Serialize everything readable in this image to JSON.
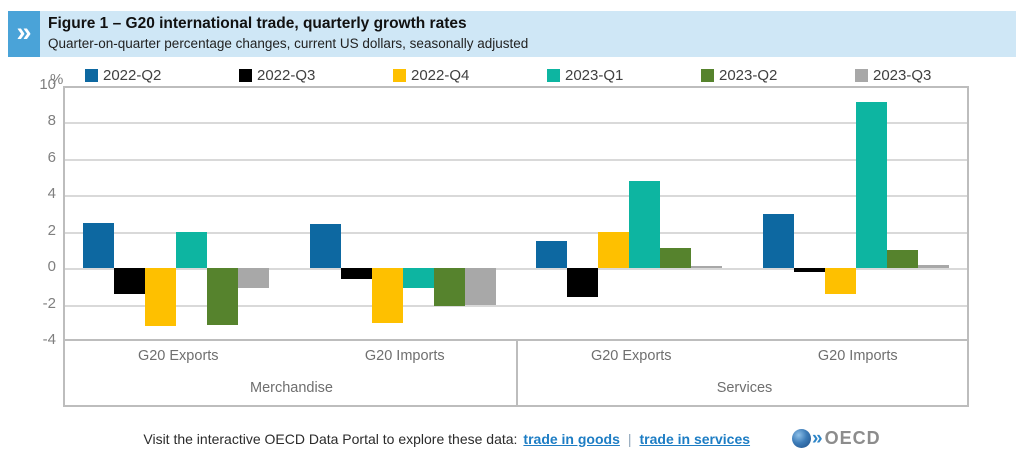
{
  "header": {
    "chevron_icon": "»",
    "title": "Figure 1 – G20 international trade, quarterly growth rates",
    "subtitle": "Quarter-on-quarter percentage changes, current US dollars, seasonally adjusted",
    "band_color": "#cfe7f6",
    "chevron_bg_color": "#4aa3d8"
  },
  "chart_data": {
    "type": "bar",
    "unit_label": "%",
    "categories": [
      "G20 Exports",
      "G20 Imports",
      "G20 Exports",
      "G20 Imports"
    ],
    "category_sections": [
      "Merchandise",
      "Merchandise",
      "Services",
      "Services"
    ],
    "section_labels": [
      "Merchandise",
      "Services"
    ],
    "series": [
      {
        "name": "2022-Q2",
        "color": "#0d68a1",
        "values": [
          2.5,
          2.4,
          1.5,
          3.0
        ]
      },
      {
        "name": "2022-Q3",
        "color": "#000000",
        "values": [
          -1.4,
          -0.6,
          -1.6,
          -0.2
        ]
      },
      {
        "name": "2022-Q4",
        "color": "#fec000",
        "values": [
          -3.2,
          -3.0,
          2.0,
          -1.4
        ]
      },
      {
        "name": "2023-Q1",
        "color": "#0db5a1",
        "values": [
          2.0,
          -1.1,
          4.8,
          9.1
        ]
      },
      {
        "name": "2023-Q2",
        "color": "#56832d",
        "values": [
          -3.1,
          -2.1,
          1.1,
          1.0
        ]
      },
      {
        "name": "2023-Q3",
        "color": "#a8a8a8",
        "values": [
          -1.1,
          -2.0,
          0.1,
          0.2
        ]
      }
    ],
    "ylim": [
      -4,
      10
    ],
    "yticks": [
      10,
      8,
      6,
      4,
      2,
      0,
      -2,
      -4
    ],
    "grid": true,
    "legend_position": "top"
  },
  "footer": {
    "lead_text": "Visit the interactive OECD Data Portal to explore these data:",
    "links": [
      {
        "label": "trade in goods"
      },
      {
        "label": "trade in services"
      }
    ],
    "separator": "|",
    "link_color": "#1d7dc4",
    "logo": {
      "chevrons": "»",
      "text": "OECD"
    }
  }
}
